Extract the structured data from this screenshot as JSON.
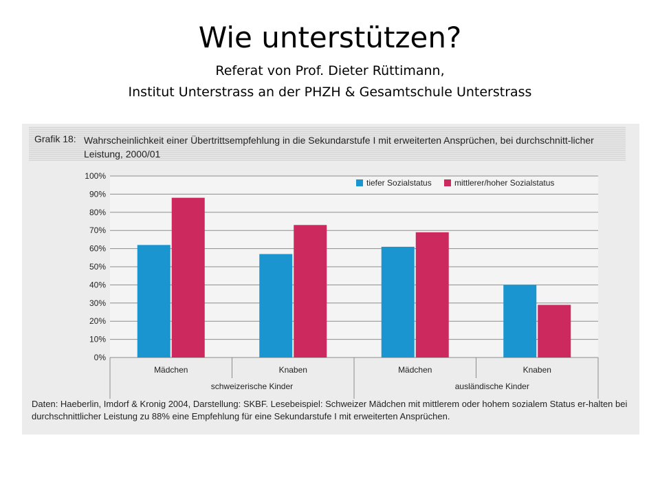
{
  "slide": {
    "title": "Wie unterstützen?",
    "subtitle_line1": "Referat von Prof. Dieter Rüttimann,",
    "subtitle_line2": "Institut Unterstrass an der PHZH & Gesamtschule Unterstrass"
  },
  "figure": {
    "label": "Grafik 18:",
    "heading": "Wahrscheinlichkeit einer Übertrittsempfehlung in die Sekundarstufe I mit erweiterten Ansprüchen, bei durchschnitt-licher Leistung, 2000/01",
    "caption": "Daten: Haeberlin, Imdorf & Kronig 2004, Darstellung: SKBF. Lesebeispiel: Schweizer Mädchen mit mittlerem oder hohem sozialem Status er-halten bei durchschnittlicher Leistung zu 88% eine Empfehlung für eine Sekundarstufe I mit erweiterten Ansprüchen."
  },
  "chart_data": {
    "type": "bar",
    "categories": [
      "Mädchen",
      "Knaben",
      "Mädchen",
      "Knaben"
    ],
    "groups": [
      {
        "label": "schweizerische Kinder",
        "categories": [
          0,
          1
        ]
      },
      {
        "label": "ausländische Kinder",
        "categories": [
          2,
          3
        ]
      }
    ],
    "series": [
      {
        "name": "tiefer Sozialstatus",
        "color": "#1b95cf",
        "values": [
          62,
          57,
          61,
          40
        ]
      },
      {
        "name": "mittlerer/hoher Sozialstatus",
        "color": "#cc2a5e",
        "values": [
          88,
          73,
          69,
          29
        ]
      }
    ],
    "yticks": [
      "0%",
      "10%",
      "20%",
      "30%",
      "40%",
      "50%",
      "60%",
      "70%",
      "80%",
      "90%",
      "100%"
    ],
    "ylim": [
      0,
      100
    ],
    "grid": true,
    "legend": "top-right"
  }
}
